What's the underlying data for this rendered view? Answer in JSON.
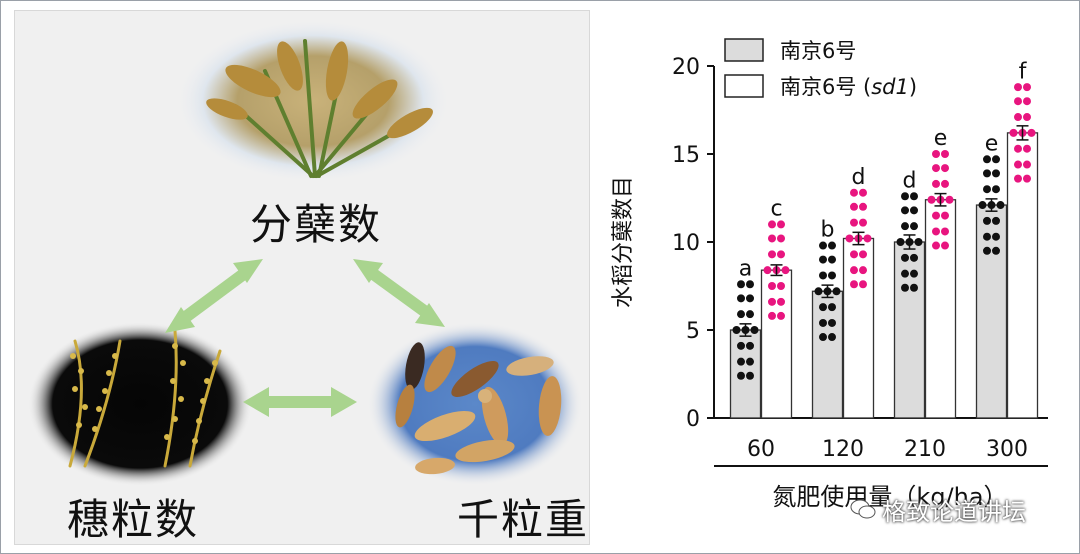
{
  "diagram": {
    "nodes": {
      "tiller": "分蘖数",
      "grains_per_panicle": "穗粒数",
      "grain_weight": "千粒重"
    },
    "colors": {
      "arrow": "#a9d48e"
    }
  },
  "chart_data": {
    "type": "bar",
    "title": "",
    "xlabel": "氮肥使用量（kg/ha）",
    "ylabel": "水稻分蘖数目",
    "ylim": [
      0,
      20
    ],
    "yticks": [
      0,
      5,
      10,
      15,
      20
    ],
    "categories": [
      "60",
      "120",
      "210",
      "300"
    ],
    "legend_position": "top-left",
    "series": [
      {
        "name": "南京6号",
        "name_plain": "南京6号",
        "name_italic": "",
        "color": "#dcdcdc",
        "dot_color": "#111111",
        "values": [
          5.0,
          7.2,
          10.0,
          12.1
        ],
        "errors": [
          0.35,
          0.35,
          0.4,
          0.35
        ],
        "letters": [
          "a",
          "b",
          "d",
          "e"
        ]
      },
      {
        "name": "南京6号 (sd1)",
        "name_plain": "南京6号 (",
        "name_italic": "sd1",
        "name_close": ")",
        "color": "#ffffff",
        "dot_color": "#e8157f",
        "values": [
          8.4,
          10.2,
          12.4,
          16.2
        ],
        "errors": [
          0.3,
          0.35,
          0.35,
          0.4
        ],
        "letters": [
          "c",
          "d",
          "e",
          "f"
        ]
      }
    ]
  },
  "watermark": {
    "text": "格致论道讲坛"
  }
}
